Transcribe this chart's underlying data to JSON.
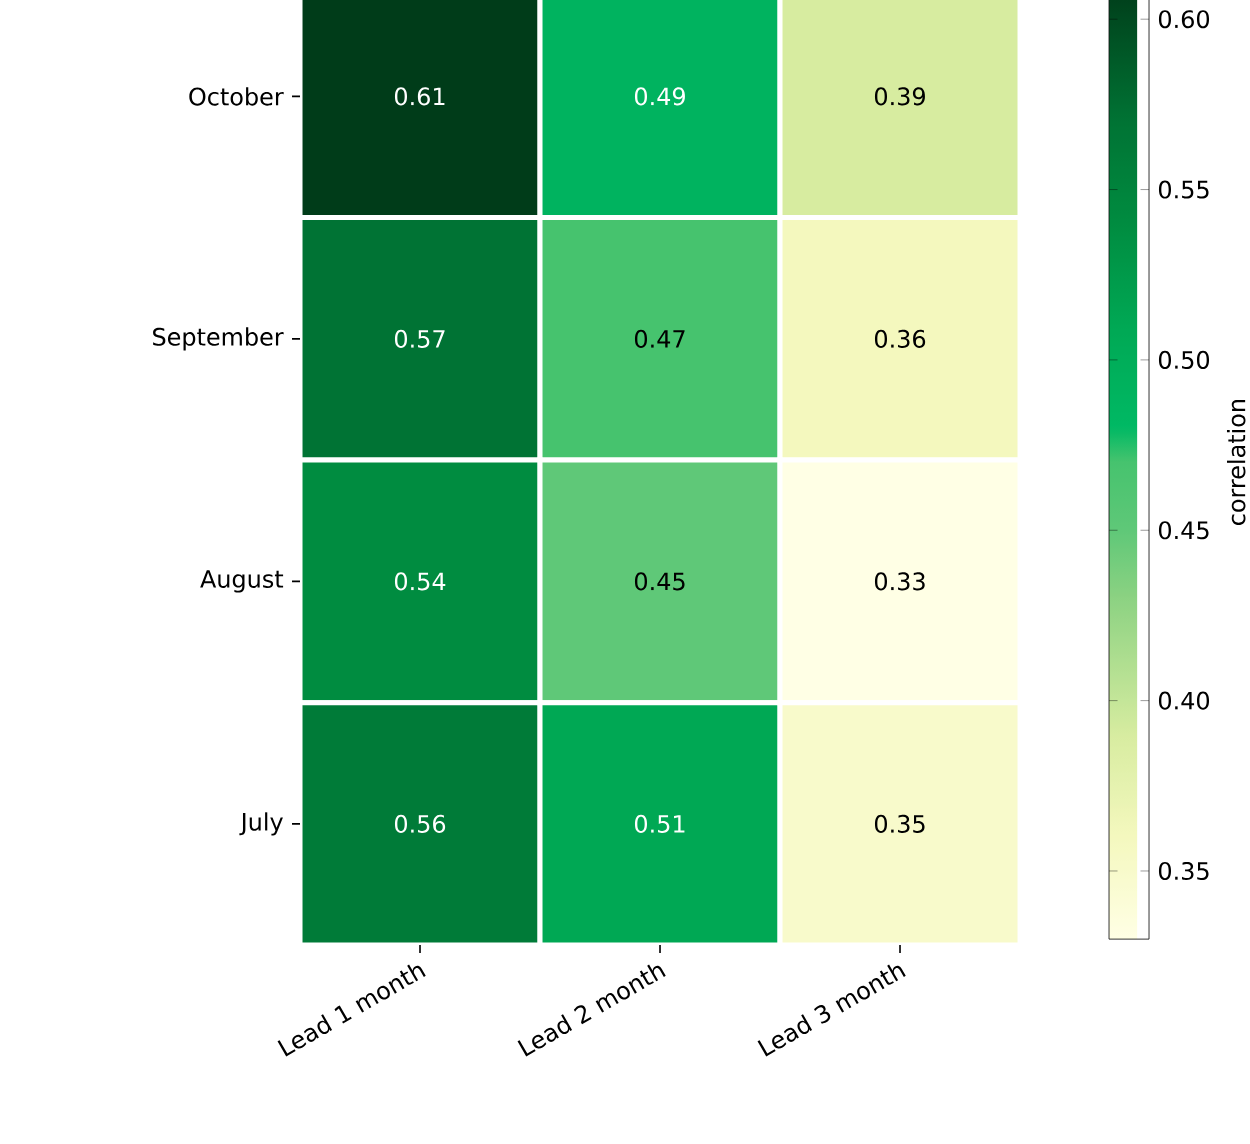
{
  "chart_data": {
    "type": "heatmap",
    "categories": [
      "Lead 1 month",
      "Lead 2 month",
      "Lead 3 month"
    ],
    "y_categories": [
      "October",
      "September",
      "August",
      "July"
    ],
    "cells": [
      [
        0.61,
        0.49,
        0.39
      ],
      [
        0.57,
        0.47,
        0.36
      ],
      [
        0.54,
        0.45,
        0.33
      ],
      [
        0.56,
        0.51,
        0.35
      ]
    ],
    "data_labels": true,
    "clabel": "correlation",
    "clim": [
      0.33,
      0.61
    ],
    "cticks": [
      {
        "value": 0.35,
        "label": "0.35"
      },
      {
        "value": 0.4,
        "label": "0.40"
      },
      {
        "value": 0.45,
        "label": "0.45"
      },
      {
        "value": 0.5,
        "label": "0.50"
      },
      {
        "value": 0.55,
        "label": "0.55"
      },
      {
        "value": 0.6,
        "label": "0.60"
      }
    ]
  }
}
